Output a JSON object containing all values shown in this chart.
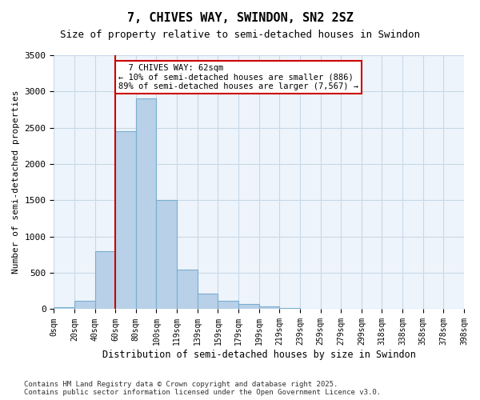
{
  "title": "7, CHIVES WAY, SWINDON, SN2 2SZ",
  "subtitle": "Size of property relative to semi-detached houses in Swindon",
  "xlabel": "Distribution of semi-detached houses by size in Swindon",
  "ylabel": "Number of semi-detached properties",
  "property_size": 62,
  "property_label": "7 CHIVES WAY: 62sqm",
  "pct_smaller": 10,
  "pct_larger": 89,
  "n_smaller": 886,
  "n_larger": 7567,
  "bin_labels": [
    "0sqm",
    "20sqm",
    "40sqm",
    "60sqm",
    "80sqm",
    "100sqm",
    "119sqm",
    "139sqm",
    "159sqm",
    "179sqm",
    "199sqm",
    "219sqm",
    "239sqm",
    "259sqm",
    "279sqm",
    "299sqm",
    "318sqm",
    "338sqm",
    "358sqm",
    "378sqm",
    "398sqm"
  ],
  "bar_values": [
    30,
    110,
    800,
    2450,
    2900,
    1500,
    550,
    210,
    120,
    70,
    40,
    15,
    5,
    2,
    1,
    1,
    0,
    0,
    0,
    0
  ],
  "bar_color": "#b8d0e8",
  "bar_edge_color": "#7aaed0",
  "vline_color": "#cc0000",
  "vline_x": 3,
  "annotation_box_color": "#cc0000",
  "grid_color": "#c8d8e8",
  "background_color": "#eef4fb",
  "ylim": [
    0,
    3500
  ],
  "yticks": [
    0,
    500,
    1000,
    1500,
    2000,
    2500,
    3000,
    3500
  ],
  "footer_line1": "Contains HM Land Registry data © Crown copyright and database right 2025.",
  "footer_line2": "Contains public sector information licensed under the Open Government Licence v3.0."
}
